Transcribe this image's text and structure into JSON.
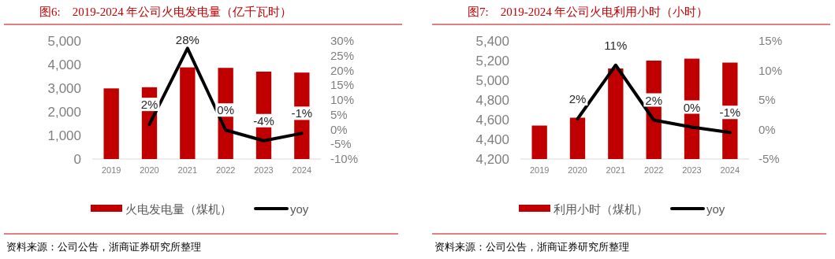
{
  "chart_data": [
    {
      "type": "bar",
      "title": "图6:　2019-2024 年公司火电发电量（亿千瓦时）",
      "categories": [
        "2019",
        "2020",
        "2021",
        "2022",
        "2023",
        "2024"
      ],
      "series": [
        {
          "name": "火电发电量（煤机）",
          "color": "#c00000",
          "values": [
            2990,
            3040,
            3880,
            3860,
            3700,
            3660
          ]
        },
        {
          "name": "yoy",
          "type": "line",
          "axis": "y2",
          "color": "#000000",
          "values": [
            null,
            1.7,
            27.5,
            -0.2,
            -3.8,
            -1.3
          ],
          "value_labels": [
            null,
            "2%",
            "28%",
            "0%",
            "-4%",
            "-1%"
          ]
        }
      ],
      "ylim": [
        0,
        5000
      ],
      "yticks": [
        0,
        {
          "value": 1000,
          "label": "1,000"
        },
        {
          "value": 2000,
          "label": "2,000"
        },
        {
          "value": 3000,
          "label": "3,000"
        },
        {
          "value": 4000,
          "label": "4,000"
        },
        {
          "value": 5000,
          "label": "5,000"
        }
      ],
      "y2lim": [
        -10,
        30
      ],
      "y2ticks": [
        {
          "value": -10,
          "label": "-10%"
        },
        {
          "value": -5,
          "label": "-5%"
        },
        {
          "value": 0,
          "label": "0%"
        },
        {
          "value": 5,
          "label": "5%"
        },
        {
          "value": 10,
          "label": "10%"
        },
        {
          "value": 15,
          "label": "15%"
        },
        {
          "value": 20,
          "label": "20%"
        },
        {
          "value": 25,
          "label": "25%"
        },
        {
          "value": 30,
          "label": "30%"
        }
      ],
      "legend": "bottom",
      "annotations": [
        "资料来源：公司公告，浙商证券研究所整理"
      ]
    },
    {
      "type": "bar",
      "title": "图7:　2019-2024 年公司火电利用小时（小时）",
      "categories": [
        "2019",
        "2020",
        "2021",
        "2022",
        "2023",
        "2024"
      ],
      "series": [
        {
          "name": "利用小时（煤机）",
          "color": "#c00000",
          "values": [
            4540,
            4620,
            5120,
            5200,
            5220,
            5180
          ]
        },
        {
          "name": "yoy",
          "type": "line",
          "axis": "y2",
          "color": "#000000",
          "values": [
            null,
            1.8,
            10.9,
            1.6,
            0.4,
            -0.5
          ],
          "value_labels": [
            null,
            "2%",
            "11%",
            "2%",
            "0%",
            "-1%"
          ]
        }
      ],
      "ylim": [
        4200,
        5400
      ],
      "yticks": [
        {
          "value": 4200,
          "label": "4,200"
        },
        {
          "value": 4400,
          "label": "4,400"
        },
        {
          "value": 4600,
          "label": "4,600"
        },
        {
          "value": 4800,
          "label": "4,800"
        },
        {
          "value": 5000,
          "label": "5,000"
        },
        {
          "value": 5200,
          "label": "5,200"
        },
        {
          "value": 5400,
          "label": "5,400"
        }
      ],
      "y2lim": [
        -5,
        15
      ],
      "y2ticks": [
        {
          "value": -5,
          "label": "-5%"
        },
        {
          "value": 0,
          "label": "0%"
        },
        {
          "value": 5,
          "label": "5%"
        },
        {
          "value": 10,
          "label": "10%"
        },
        {
          "value": 15,
          "label": "15%"
        }
      ],
      "legend": "bottom",
      "annotations": [
        "资料来源：公司公告，浙商证券研究所整理"
      ]
    }
  ]
}
